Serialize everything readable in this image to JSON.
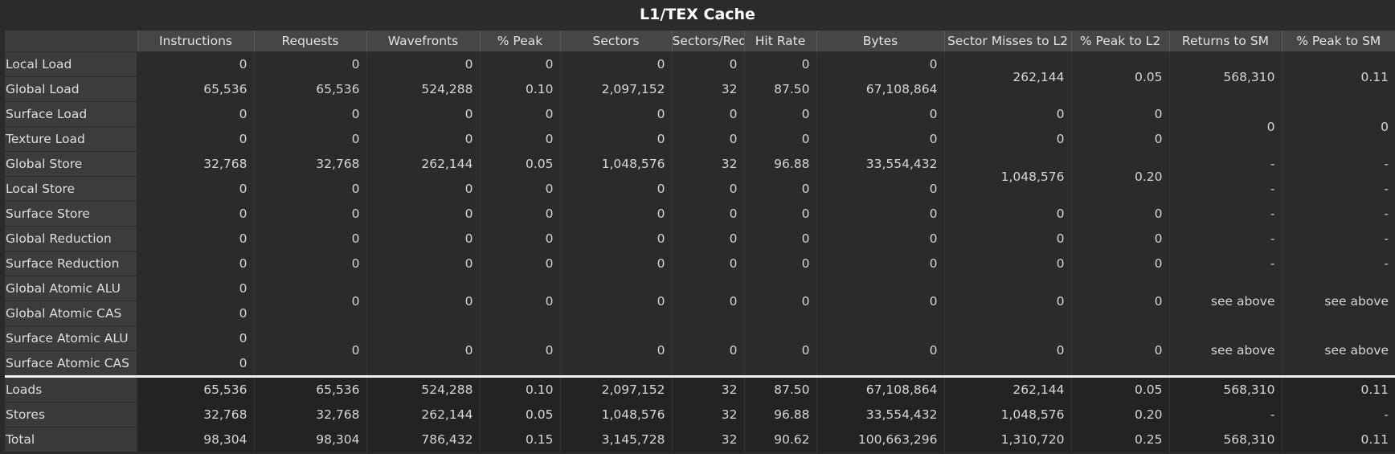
{
  "title": "L1/TEX Cache",
  "columns": [
    "Instructions",
    "Requests",
    "Wavefronts",
    "% Peak",
    "Sectors",
    "Sectors/Req",
    "Hit Rate",
    "Bytes",
    "Sector Misses to L2",
    "% Peak to L2",
    "Returns to SM",
    "% Peak to SM"
  ],
  "rows": [
    {
      "label": "Local Load",
      "instructions": "0",
      "requests": "0",
      "wavefronts": "0",
      "peak": "0",
      "sectors": "0",
      "sectors_req": "0",
      "hit_rate": "0",
      "bytes": "0"
    },
    {
      "label": "Global Load",
      "instructions": "65,536",
      "requests": "65,536",
      "wavefronts": "524,288",
      "peak": "0.10",
      "sectors": "2,097,152",
      "sectors_req": "32",
      "hit_rate": "87.50",
      "bytes": "67,108,864"
    },
    {
      "label": "Surface Load",
      "instructions": "0",
      "requests": "0",
      "wavefronts": "0",
      "peak": "0",
      "sectors": "0",
      "sectors_req": "0",
      "hit_rate": "0",
      "bytes": "0"
    },
    {
      "label": "Texture Load",
      "instructions": "0",
      "requests": "0",
      "wavefronts": "0",
      "peak": "0",
      "sectors": "0",
      "sectors_req": "0",
      "hit_rate": "0",
      "bytes": "0"
    },
    {
      "label": "Global Store",
      "instructions": "32,768",
      "requests": "32,768",
      "wavefronts": "262,144",
      "peak": "0.05",
      "sectors": "1,048,576",
      "sectors_req": "32",
      "hit_rate": "96.88",
      "bytes": "33,554,432"
    },
    {
      "label": "Local Store",
      "instructions": "0",
      "requests": "0",
      "wavefronts": "0",
      "peak": "0",
      "sectors": "0",
      "sectors_req": "0",
      "hit_rate": "0",
      "bytes": "0"
    },
    {
      "label": "Surface Store",
      "instructions": "0",
      "requests": "0",
      "wavefronts": "0",
      "peak": "0",
      "sectors": "0",
      "sectors_req": "0",
      "hit_rate": "0",
      "bytes": "0"
    },
    {
      "label": "Global Reduction",
      "instructions": "0",
      "requests": "0",
      "wavefronts": "0",
      "peak": "0",
      "sectors": "0",
      "sectors_req": "0",
      "hit_rate": "0",
      "bytes": "0"
    },
    {
      "label": "Surface Reduction",
      "instructions": "0",
      "requests": "0",
      "wavefronts": "0",
      "peak": "0",
      "sectors": "0",
      "sectors_req": "0",
      "hit_rate": "0",
      "bytes": "0"
    },
    {
      "label": "Global Atomic ALU",
      "instructions": "0"
    },
    {
      "label": "Global Atomic CAS",
      "instructions": "0"
    },
    {
      "label": "Surface Atomic ALU",
      "instructions": "0"
    },
    {
      "label": "Surface Atomic CAS",
      "instructions": "0"
    }
  ],
  "merged": {
    "load_l2": {
      "misses": "262,144",
      "peak_l2": "0.05",
      "returns": "568,310",
      "peak_sm": "0.11"
    },
    "surface_load_l2": {
      "misses": "0",
      "peak_l2": "0"
    },
    "texture_load_l2": {
      "misses": "0",
      "peak_l2": "0"
    },
    "tex_returns": {
      "returns": "0",
      "peak_sm": "0"
    },
    "store_l2": {
      "misses": "1,048,576",
      "peak_l2": "0.20"
    },
    "store_returns": [
      {
        "returns": "-",
        "peak_sm": "-"
      },
      {
        "returns": "-",
        "peak_sm": "-"
      },
      {
        "returns": "-",
        "peak_sm": "-"
      },
      {
        "returns": "-",
        "peak_sm": "-"
      },
      {
        "returns": "-",
        "peak_sm": "-"
      }
    ],
    "store_rows_l2": [
      {
        "misses": "0",
        "peak_l2": "0"
      },
      {
        "misses": "0",
        "peak_l2": "0"
      },
      {
        "misses": "0",
        "peak_l2": "0"
      }
    ],
    "global_atomic": {
      "requests": "0",
      "wavefronts": "0",
      "peak": "0",
      "sectors": "0",
      "sectors_req": "0",
      "hit_rate": "0",
      "bytes": "0",
      "misses": "0",
      "peak_l2": "0",
      "returns": "see above",
      "peak_sm": "see above"
    },
    "surface_atomic": {
      "requests": "0",
      "wavefronts": "0",
      "peak": "0",
      "sectors": "0",
      "sectors_req": "0",
      "hit_rate": "0",
      "bytes": "0",
      "misses": "0",
      "peak_l2": "0",
      "returns": "see above",
      "peak_sm": "see above"
    }
  },
  "totals": [
    {
      "label": "Loads",
      "values": [
        "65,536",
        "65,536",
        "524,288",
        "0.10",
        "2,097,152",
        "32",
        "87.50",
        "67,108,864",
        "262,144",
        "0.05",
        "568,310",
        "0.11"
      ]
    },
    {
      "label": "Stores",
      "values": [
        "32,768",
        "32,768",
        "262,144",
        "0.05",
        "1,048,576",
        "32",
        "96.88",
        "33,554,432",
        "1,048,576",
        "0.20",
        "-",
        "-"
      ]
    },
    {
      "label": "Total",
      "values": [
        "98,304",
        "98,304",
        "786,432",
        "0.15",
        "3,145,728",
        "32",
        "90.62",
        "100,663,296",
        "1,310,720",
        "0.25",
        "568,310",
        "0.11"
      ]
    }
  ]
}
